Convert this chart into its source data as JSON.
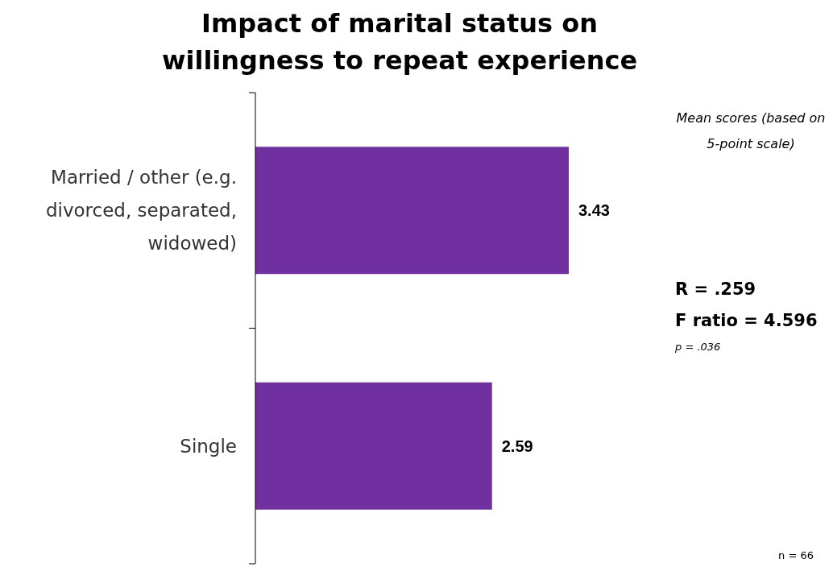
{
  "chart_data": {
    "type": "bar",
    "orientation": "horizontal",
    "title": "Impact of marital status on willingness to repeat experience",
    "categories": [
      "Married / other  (e.g. divorced, separated, widowed)",
      "Single"
    ],
    "values": [
      3.43,
      2.59
    ],
    "color": "#7030a0",
    "data_labels": true,
    "annotations": [
      "Mean scores (based on 5-point scale)",
      "R = .259",
      "F ratio = 4.596",
      "p = .036",
      "n = 66"
    ]
  }
}
